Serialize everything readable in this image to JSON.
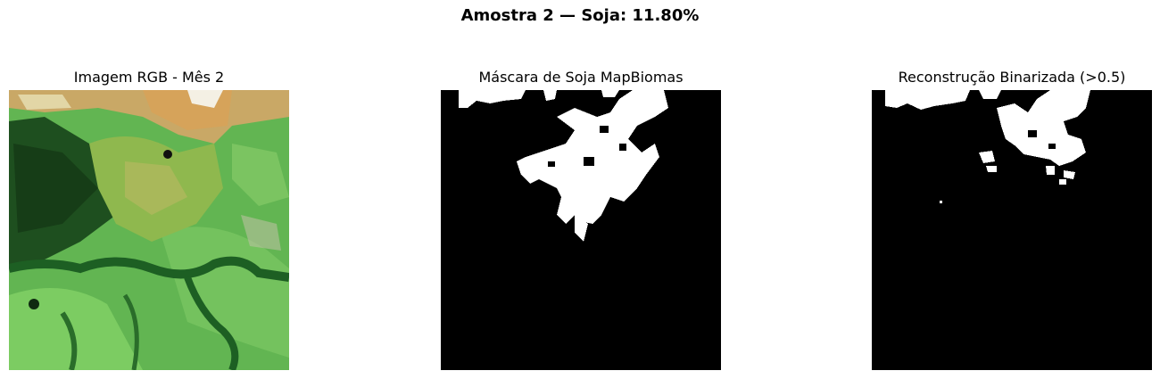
{
  "figure": {
    "title": "Amostra 2 — Soja: 11.80%"
  },
  "panels": [
    {
      "title": "Imagem RGB - Mês 2"
    },
    {
      "title": "Máscara de Soja MapBiomas"
    },
    {
      "title": "Reconstrução Binarizada (>0.5)"
    }
  ],
  "colors": {
    "mask_background": "#000000",
    "mask_foreground": "#ffffff",
    "vegetation_light": "#6bc45a",
    "vegetation_dark": "#1f5a22",
    "field_tan": "#c8a86a"
  }
}
